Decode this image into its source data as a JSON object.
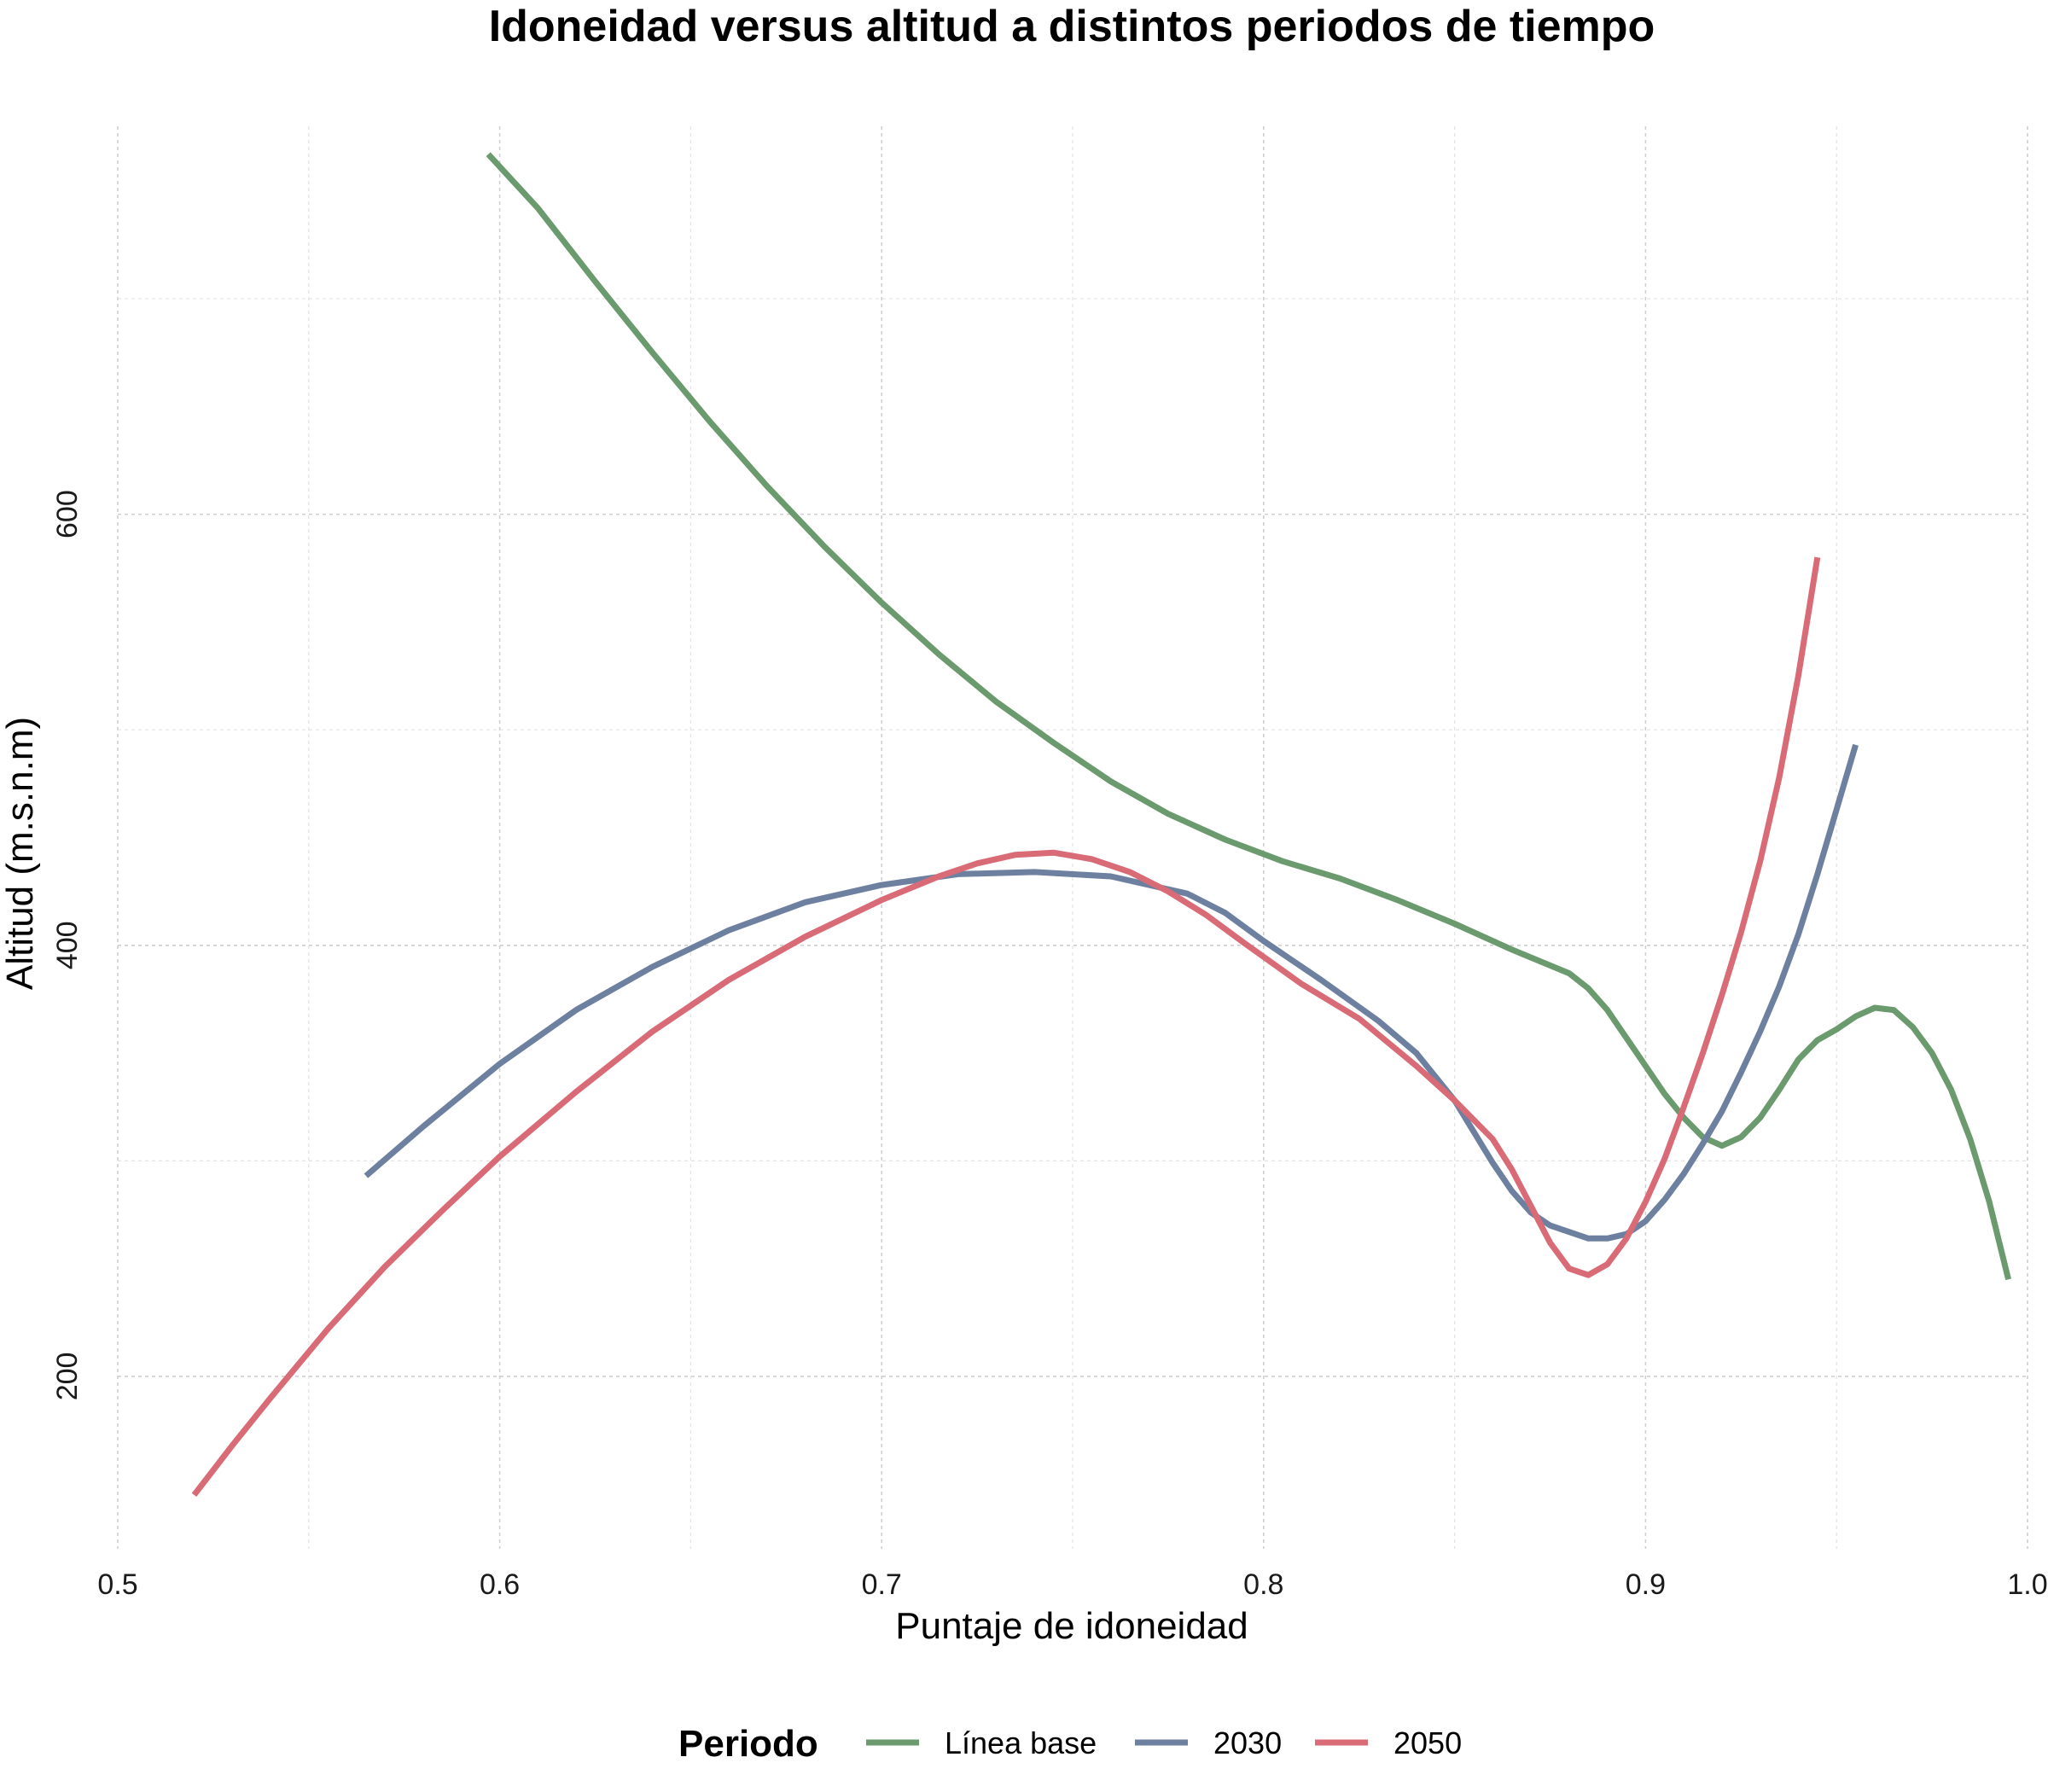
{
  "chart_data": {
    "type": "line",
    "title": "Idoneidad versus altitud a distintos periodos de tiempo",
    "xlabel": "Puntaje de idoneidad",
    "ylabel": "Altitud (m.s.n.m)",
    "xlim": [
      0.5,
      1.0
    ],
    "ylim": [
      120,
      780
    ],
    "x_ticks": [
      0.5,
      0.6,
      0.7,
      0.8,
      0.9,
      1.0
    ],
    "x_tick_labels": [
      "0.5",
      "0.6",
      "0.7",
      "0.8",
      "0.9",
      "1.0"
    ],
    "y_ticks": [
      200,
      400,
      600
    ],
    "y_tick_labels": [
      "200",
      "400",
      "600"
    ],
    "grid": true,
    "legend": {
      "title": "Periodo",
      "position": "bottom"
    },
    "series": [
      {
        "name": "Línea base",
        "color": "#6b9a6e",
        "points": [
          [
            0.597,
            767
          ],
          [
            0.61,
            742
          ],
          [
            0.625,
            708
          ],
          [
            0.64,
            675
          ],
          [
            0.655,
            643
          ],
          [
            0.67,
            613
          ],
          [
            0.685,
            585
          ],
          [
            0.7,
            559
          ],
          [
            0.715,
            535
          ],
          [
            0.73,
            513
          ],
          [
            0.745,
            494
          ],
          [
            0.76,
            476
          ],
          [
            0.775,
            461
          ],
          [
            0.79,
            449
          ],
          [
            0.805,
            439
          ],
          [
            0.82,
            431
          ],
          [
            0.835,
            421
          ],
          [
            0.85,
            410
          ],
          [
            0.865,
            398
          ],
          [
            0.88,
            387
          ],
          [
            0.885,
            380
          ],
          [
            0.89,
            370
          ],
          [
            0.895,
            357
          ],
          [
            0.9,
            344
          ],
          [
            0.905,
            331
          ],
          [
            0.91,
            320
          ],
          [
            0.915,
            311
          ],
          [
            0.92,
            307
          ],
          [
            0.925,
            311
          ],
          [
            0.93,
            320
          ],
          [
            0.935,
            333
          ],
          [
            0.94,
            347
          ],
          [
            0.945,
            356
          ],
          [
            0.95,
            361
          ],
          [
            0.955,
            367
          ],
          [
            0.96,
            371
          ],
          [
            0.965,
            370
          ],
          [
            0.97,
            362
          ],
          [
            0.975,
            350
          ],
          [
            0.98,
            333
          ],
          [
            0.985,
            310
          ],
          [
            0.99,
            281
          ],
          [
            0.995,
            245
          ]
        ]
      },
      {
        "name": "2030",
        "color": "#6e80a0",
        "points": [
          [
            0.565,
            293
          ],
          [
            0.58,
            316
          ],
          [
            0.6,
            345
          ],
          [
            0.62,
            370
          ],
          [
            0.64,
            390
          ],
          [
            0.66,
            407
          ],
          [
            0.68,
            420
          ],
          [
            0.7,
            428
          ],
          [
            0.72,
            433
          ],
          [
            0.74,
            434
          ],
          [
            0.76,
            432
          ],
          [
            0.78,
            424
          ],
          [
            0.79,
            415
          ],
          [
            0.8,
            402
          ],
          [
            0.815,
            384
          ],
          [
            0.83,
            365
          ],
          [
            0.84,
            350
          ],
          [
            0.85,
            328
          ],
          [
            0.86,
            299
          ],
          [
            0.865,
            286
          ],
          [
            0.87,
            276
          ],
          [
            0.875,
            270
          ],
          [
            0.88,
            267
          ],
          [
            0.885,
            264
          ],
          [
            0.89,
            264
          ],
          [
            0.895,
            266
          ],
          [
            0.9,
            272
          ],
          [
            0.905,
            282
          ],
          [
            0.91,
            294
          ],
          [
            0.915,
            308
          ],
          [
            0.92,
            323
          ],
          [
            0.925,
            341
          ],
          [
            0.93,
            360
          ],
          [
            0.935,
            381
          ],
          [
            0.94,
            405
          ],
          [
            0.945,
            433
          ],
          [
            0.95,
            463
          ],
          [
            0.955,
            493
          ]
        ]
      },
      {
        "name": "2050",
        "color": "#d96b77",
        "points": [
          [
            0.52,
            145
          ],
          [
            0.53,
            168
          ],
          [
            0.54,
            190
          ],
          [
            0.555,
            222
          ],
          [
            0.57,
            251
          ],
          [
            0.585,
            277
          ],
          [
            0.6,
            302
          ],
          [
            0.62,
            332
          ],
          [
            0.64,
            360
          ],
          [
            0.66,
            384
          ],
          [
            0.68,
            404
          ],
          [
            0.7,
            421
          ],
          [
            0.715,
            432
          ],
          [
            0.725,
            438
          ],
          [
            0.735,
            442
          ],
          [
            0.745,
            443
          ],
          [
            0.755,
            440
          ],
          [
            0.765,
            434
          ],
          [
            0.775,
            425
          ],
          [
            0.785,
            414
          ],
          [
            0.795,
            401
          ],
          [
            0.81,
            382
          ],
          [
            0.825,
            366
          ],
          [
            0.84,
            344
          ],
          [
            0.85,
            328
          ],
          [
            0.86,
            310
          ],
          [
            0.865,
            296
          ],
          [
            0.87,
            279
          ],
          [
            0.875,
            262
          ],
          [
            0.88,
            250
          ],
          [
            0.885,
            247
          ],
          [
            0.89,
            252
          ],
          [
            0.895,
            264
          ],
          [
            0.9,
            281
          ],
          [
            0.905,
            301
          ],
          [
            0.91,
            325
          ],
          [
            0.915,
            350
          ],
          [
            0.92,
            377
          ],
          [
            0.925,
            406
          ],
          [
            0.93,
            439
          ],
          [
            0.935,
            478
          ],
          [
            0.94,
            525
          ],
          [
            0.945,
            580
          ]
        ]
      }
    ]
  }
}
